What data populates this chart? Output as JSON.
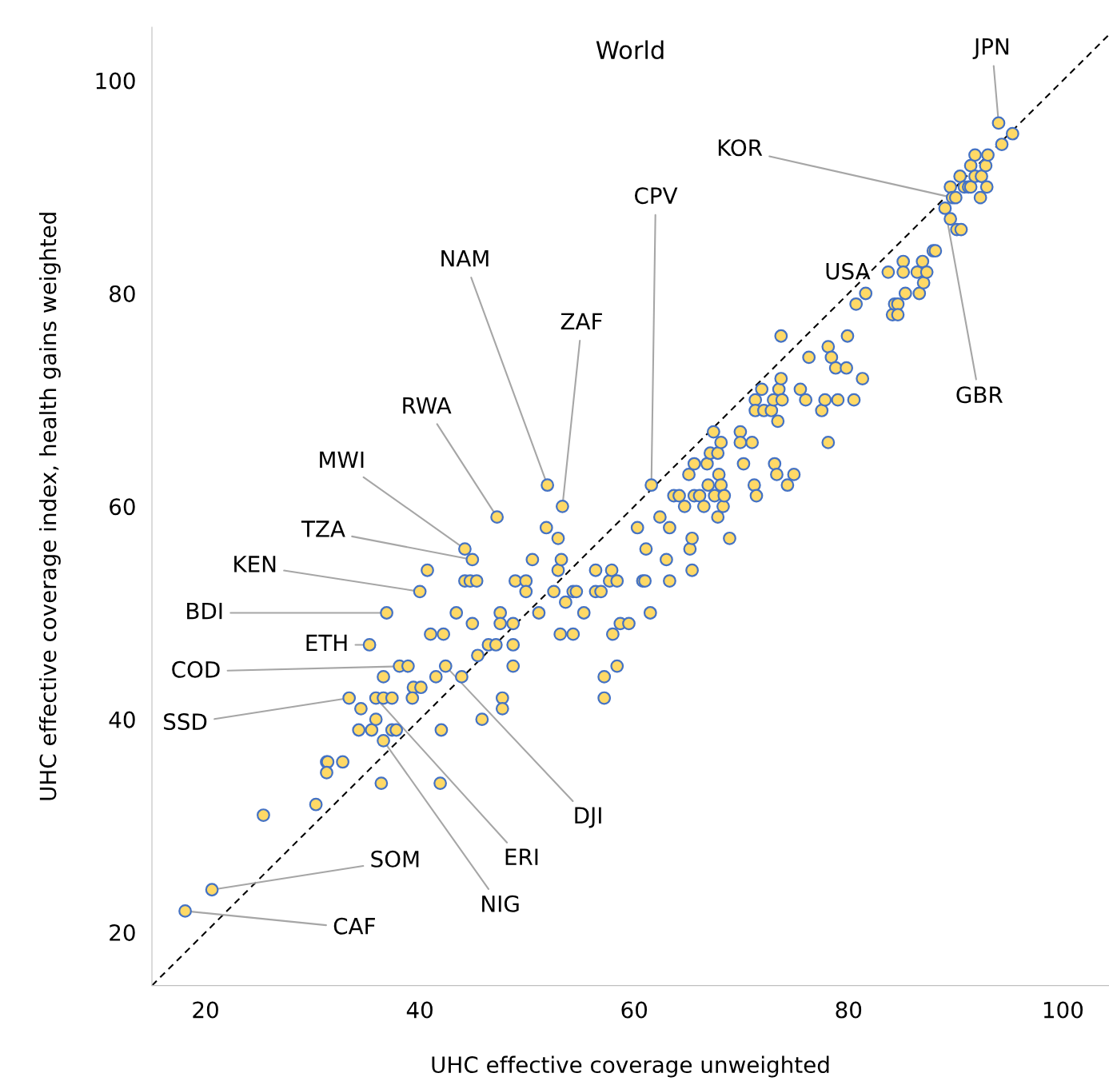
{
  "chart_data": {
    "type": "scatter",
    "title": "World",
    "xlabel": "UHC effective coverage unweighted",
    "ylabel": "UHC effective coverage index, health gains weighted",
    "xlim": [
      15,
      104.3
    ],
    "ylim": [
      15,
      105
    ],
    "xticks": [
      20,
      40,
      60,
      80,
      100
    ],
    "yticks": [
      20,
      40,
      60,
      80,
      100
    ],
    "grid": false,
    "legend": false,
    "series": [
      {
        "type": "line",
        "color": "#000000",
        "line_style": "dashed",
        "marker": "none",
        "x": [
          15,
          104.3
        ],
        "values": [
          15,
          104.3
        ]
      },
      {
        "color": "#ffd966",
        "marker": "circle",
        "x": [
          18.1,
          20.6,
          25.4,
          30.3,
          31.3,
          31.4,
          31.3,
          32.8,
          33.4,
          34.5,
          34.3,
          35.5,
          35.9,
          35.9,
          36.6,
          36.6,
          37.4,
          36.6,
          36.4,
          37.4,
          37.8,
          38.1,
          38.9,
          39.4,
          40.1,
          39.3,
          40.0,
          40.7,
          36.9,
          35.3,
          41.0,
          41.5,
          41.9,
          42.0,
          42.2,
          42.4,
          43.4,
          43.9,
          44.2,
          44.7,
          45.3,
          44.2,
          44.9,
          44.9,
          45.4,
          45.8,
          46.4,
          47.1,
          47.2,
          47.5,
          47.5,
          47.7,
          47.7,
          48.7,
          48.7,
          48.7,
          48.9,
          49.9,
          49.9,
          50.5,
          51.1,
          51.8,
          51.9,
          52.5,
          52.9,
          52.9,
          53.2,
          53.3,
          53.1,
          53.6,
          54.3,
          54.6,
          54.3,
          55.3,
          56.4,
          56.4,
          56.9,
          57.2,
          57.2,
          57.7,
          57.9,
          58.0,
          58.4,
          58.4,
          58.7,
          59.5,
          60.3,
          60.8,
          61.0,
          61.1,
          61.5,
          61.6,
          62.4,
          63.0,
          63.3,
          63.3,
          63.7,
          64.2,
          64.7,
          65.1,
          65.2,
          65.4,
          65.4,
          65.6,
          65.6,
          66.1,
          66.5,
          66.8,
          66.9,
          67.1,
          67.4,
          67.5,
          67.8,
          67.8,
          67.9,
          68.1,
          68.1,
          68.3,
          68.4,
          68.9,
          69.9,
          69.9,
          70.2,
          71.0,
          71.2,
          71.4,
          71.3,
          71.3,
          71.9,
          72.1,
          72.8,
          73.0,
          73.1,
          73.3,
          73.4,
          73.5,
          73.7,
          73.7,
          73.8,
          74.3,
          74.9,
          75.5,
          76.0,
          76.3,
          77.5,
          77.8,
          78.1,
          78.1,
          78.4,
          78.8,
          79.0,
          79.8,
          79.9,
          80.5,
          80.7,
          81.3,
          81.6,
          83.7,
          84.1,
          84.3,
          84.6,
          84.6,
          85.1,
          85.1,
          85.3,
          86.4,
          86.6,
          86.9,
          87.0,
          87.3,
          87.9,
          88.1,
          89.0,
          89.5,
          89.5,
          89.7,
          90.0,
          90.1,
          90.5,
          90.4,
          90.8,
          91.2,
          91.4,
          91.4,
          91.8,
          91.8,
          92.4,
          92.3,
          92.8,
          93.0,
          92.9,
          94.0,
          94.3,
          95.3
        ],
        "values": [
          22,
          24,
          31,
          32,
          36,
          36,
          35,
          36,
          42,
          41,
          39,
          39,
          40,
          42,
          44,
          42,
          42,
          38,
          34,
          39,
          39,
          45,
          45,
          43,
          43,
          42,
          52,
          54,
          50,
          47,
          48,
          44,
          34,
          39,
          48,
          45,
          50,
          44,
          53,
          53,
          53,
          56,
          55,
          49,
          46,
          40,
          47,
          47,
          59,
          50,
          49,
          42,
          41,
          49,
          47,
          45,
          53,
          53,
          52,
          55,
          50,
          58,
          62,
          52,
          57,
          54,
          55,
          60,
          48,
          51,
          52,
          52,
          48,
          50,
          54,
          52,
          52,
          44,
          42,
          53,
          54,
          48,
          45,
          53,
          49,
          49,
          58,
          53,
          53,
          56,
          50,
          62,
          59,
          55,
          58,
          53,
          61,
          61,
          60,
          63,
          56,
          57,
          54,
          64,
          61,
          61,
          60,
          64,
          62,
          65,
          67,
          61,
          65,
          59,
          63,
          66,
          62,
          60,
          61,
          57,
          67,
          66,
          64,
          66,
          62,
          61,
          70,
          69,
          71,
          69,
          69,
          70,
          64,
          63,
          68,
          71,
          76,
          72,
          70,
          62,
          63,
          71,
          70,
          74,
          69,
          70,
          66,
          75,
          74,
          73,
          70,
          73,
          76,
          70,
          79,
          72,
          80,
          82,
          78,
          79,
          79,
          78,
          83,
          82,
          80,
          82,
          80,
          83,
          81,
          82,
          84,
          84,
          88,
          87,
          90,
          89,
          89,
          86,
          86,
          91,
          90,
          90,
          90,
          92,
          93,
          91,
          91,
          89,
          92,
          93,
          90,
          96,
          94,
          95
        ]
      }
    ],
    "annotations": [
      {
        "text": "JPN",
        "x": 94.0,
        "y": 96
      },
      {
        "text": "KOR",
        "x": 89.7,
        "y": 89
      },
      {
        "text": "USA"
      },
      {
        "text": "GBR",
        "x": 89.0,
        "y": 88
      },
      {
        "text": "CPV",
        "x": 61.6,
        "y": 62
      },
      {
        "text": "NAM",
        "x": 51.9,
        "y": 62
      },
      {
        "text": "ZAF",
        "x": 53.3,
        "y": 60
      },
      {
        "text": "RWA",
        "x": 47.2,
        "y": 59
      },
      {
        "text": "MWI",
        "x": 44.2,
        "y": 56
      },
      {
        "text": "TZA",
        "x": 44.9,
        "y": 55
      },
      {
        "text": "KEN",
        "x": 40.0,
        "y": 52
      },
      {
        "text": "BDI",
        "x": 36.9,
        "y": 50
      },
      {
        "text": "ETH",
        "x": 35.3,
        "y": 47
      },
      {
        "text": "COD",
        "x": 38.9,
        "y": 45
      },
      {
        "text": "SSD",
        "x": 33.4,
        "y": 42
      },
      {
        "text": "DJI",
        "x": 42.4,
        "y": 45
      },
      {
        "text": "ERI",
        "x": 35.9,
        "y": 42
      },
      {
        "text": "SOM",
        "x": 20.6,
        "y": 24
      },
      {
        "text": "NIG",
        "x": 36.6,
        "y": 38
      },
      {
        "text": "CAF",
        "x": 18.1,
        "y": 22
      }
    ]
  }
}
